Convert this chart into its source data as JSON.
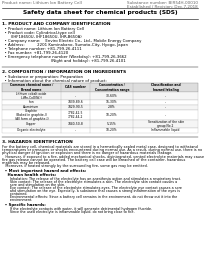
{
  "title": "Safety data sheet for chemical products (SDS)",
  "header_left": "Product name: Lithium Ion Battery Cell",
  "header_right_1": "Substance number: BIR54H-00010",
  "header_right_2": "Established / Revision: Dec.7,2018",
  "section1_title": "1. PRODUCT AND COMPANY IDENTIFICATION",
  "section1_lines": [
    "  • Product name: Lithium Ion Battery Cell",
    "  • Product code: Cylindrical-type cell",
    "       (IHF18650U, IHF18650U, IHR-B650A)",
    "  • Company name:    Enviro Electric Co., Ltd., Mobile Energy Company",
    "  • Address:          2201 Kaminakano, Sumoto-City, Hyogo, Japan",
    "  • Telephone number: +81-799-26-4111",
    "  • Fax number: +81-799-26-4120",
    "  • Emergency telephone number (Weekday): +81-799-26-3662",
    "                                       (Night and holiday): +81-799-26-4101"
  ],
  "section2_title": "2. COMPOSITION / INFORMATION ON INGREDIENTS",
  "section2_intro": "  • Substance or preparation: Preparation",
  "section2_sub": "  • Information about the chemical nature of product:",
  "table_col_names": [
    "Common chemical name /\nBrand name",
    "CAS number",
    "Concentration /\nConcentration range",
    "Classification and\nhazard labeling"
  ],
  "table_rows": [
    [
      "Lithium cobalt oxide\n(LiMn-CoO(Ni))",
      "-",
      "30-60%",
      "-"
    ],
    [
      "Iron",
      "7439-89-6",
      "16-30%",
      "-"
    ],
    [
      "Aluminium",
      "7429-90-5",
      "2-8%",
      "-"
    ],
    [
      "Graphite\n(Baked in graphite-I)\n(All form of graphite-I)",
      "7782-42-5\n7782-44-2",
      "10-20%",
      "-"
    ],
    [
      "Copper",
      "7440-50-8",
      "5-15%",
      "Sensitization of the skin\ngroup No.2"
    ],
    [
      "Organic electrolyte",
      "-",
      "10-20%",
      "Inflammable liquid"
    ]
  ],
  "section3_title": "3. HAZARDS IDENTIFICATION",
  "section3_para": [
    "For the battery cell, chemical materials are stored in a hermetically sealed metal case, designed to withstand",
    "temperatures or pressures or shocks encountered during normal use. As a result, during normal use, there is no",
    "physical danger of ignition or explosion and there is no danger of hazardous materials leakage.",
    "   However, if exposed to a fire, added mechanical shocks, disintegrated, vented electrolyte materials may cause",
    "fire gas release cannot be operated. The battery cell case will be breached of the container, hazardous",
    "materials may be released.",
    "   Moreover, if heated strongly by the surrounding fire, some gas may be emitted."
  ],
  "section3_bullet1": "  • Most important hazard and effects:",
  "section3_human": "    Human health effects:",
  "section3_human_lines": [
    "       Inhalation: The release of the electrolyte has an anesthesia action and stimulates a respiratory tract.",
    "       Skin contact: The release of the electrolyte stimulates a skin. The electrolyte skin contact causes a",
    "       sore and stimulation on the skin.",
    "       Eye contact: The release of the electrolyte stimulates eyes. The electrolyte eye contact causes a sore",
    "       and stimulation on the eye. Especially, a substance that causes a strong inflammation of the eyes is",
    "       contained.",
    "       Environmental effects: Since a battery cell remains in the environment, do not throw out it into the",
    "       environment."
  ],
  "section3_specific": "  • Specific hazards:",
  "section3_specific_lines": [
    "       If the electrolyte contacts with water, it will generate detrimental hydrogen fluoride.",
    "       Since the used electrolyte is inflammable liquid, do not bring close to fire."
  ],
  "bg_color": "#ffffff",
  "text_color": "#000000"
}
